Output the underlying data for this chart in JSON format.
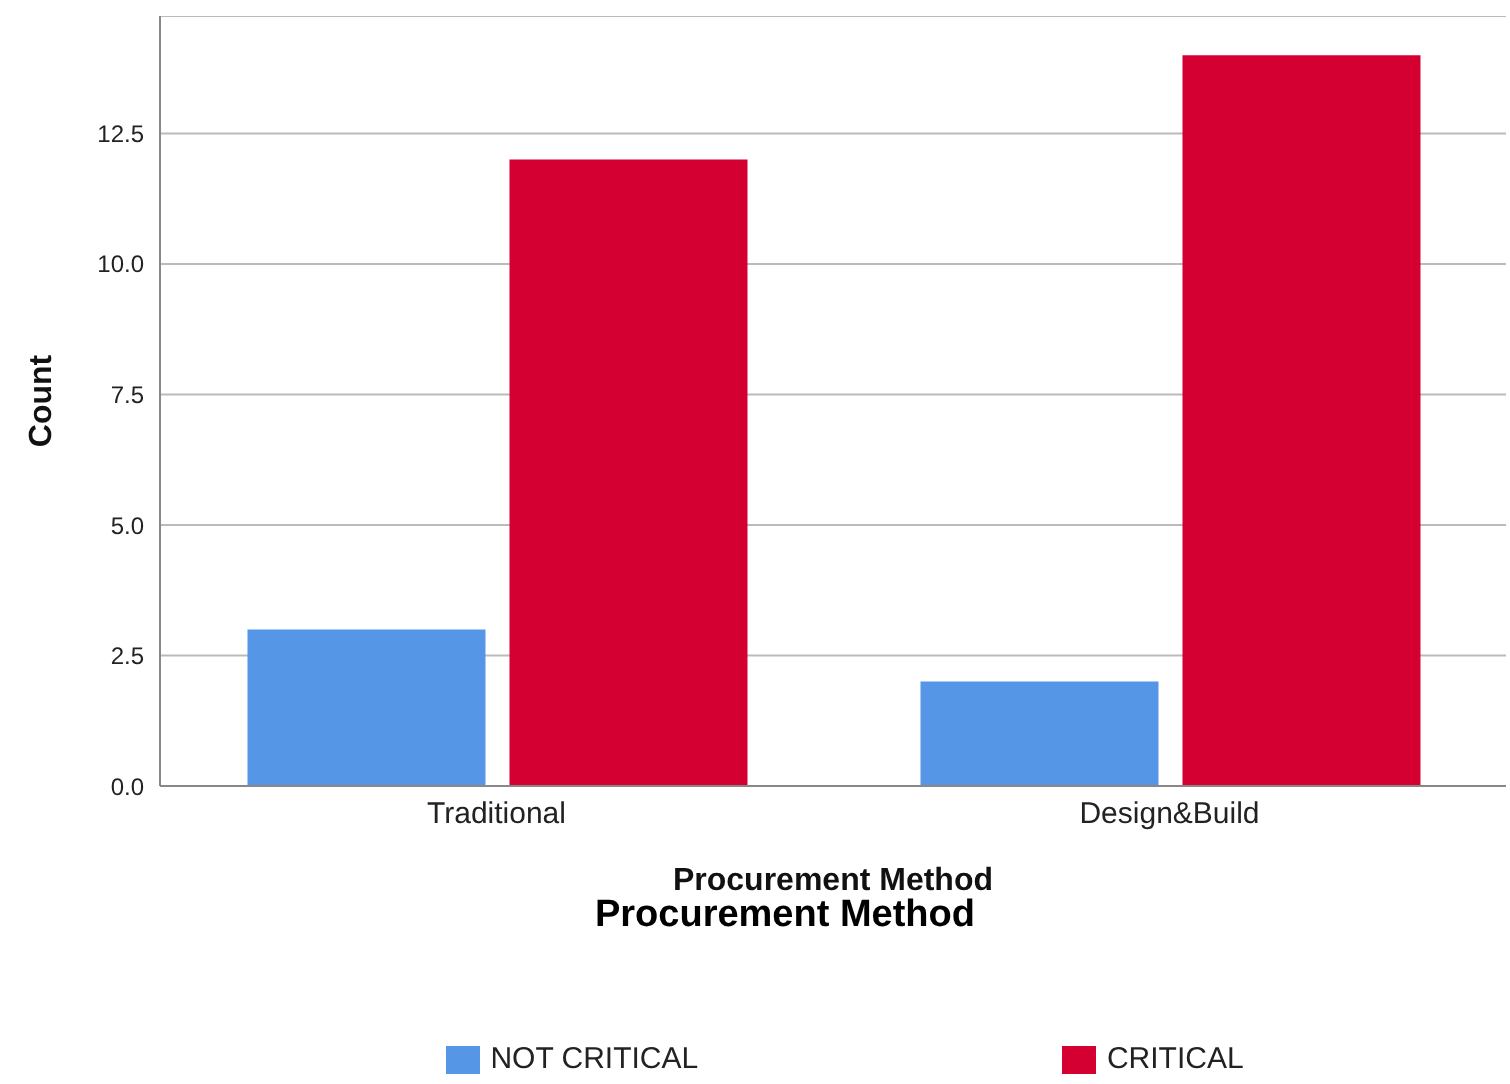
{
  "chart_data": {
    "type": "bar",
    "xlabel": "Procurement Method",
    "ylabel": "Count",
    "legend_title": "Procurement Method",
    "categories": [
      "Traditional",
      "Design&Build"
    ],
    "series": [
      {
        "name": "NOT CRITICAL",
        "color": "#5596e6",
        "values": [
          3,
          2
        ]
      },
      {
        "name": "CRITICAL",
        "color": "#d50032",
        "values": [
          12,
          14
        ]
      }
    ],
    "ylim": [
      0,
      14.75
    ],
    "yticks": [
      {
        "value": 0,
        "label": "0.0"
      },
      {
        "value": 2.5,
        "label": "2.5"
      },
      {
        "value": 5,
        "label": "5.0"
      },
      {
        "value": 7.5,
        "label": "7.5"
      },
      {
        "value": 10,
        "label": "10.0"
      },
      {
        "value": 12.5,
        "label": "12.5"
      }
    ],
    "grid": "y",
    "legend": "bottom"
  }
}
